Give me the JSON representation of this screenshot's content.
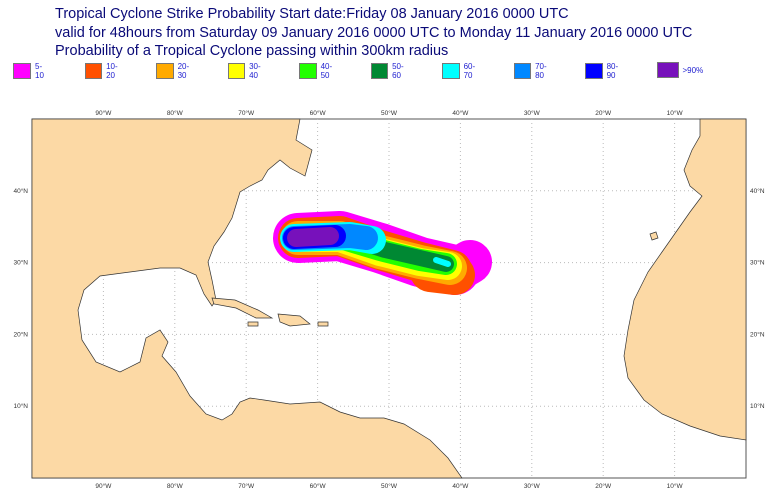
{
  "title": {
    "line1": "Tropical Cyclone Strike Probability Start date:Friday 08 January 2016 0000 UTC",
    "line2": "valid for 48hours from Saturday 09 January 2016 0000 UTC to  Monday 11 January 2016 0000 UTC",
    "line3": "Probability of a Tropical Cyclone passing within 300km radius"
  },
  "legend": [
    {
      "label": "5-10",
      "color": "#ff00ff"
    },
    {
      "label": "10-20",
      "color": "#ff5000"
    },
    {
      "label": "20-30",
      "color": "#ffaa00"
    },
    {
      "label": "30-40",
      "color": "#ffff00"
    },
    {
      "label": "40-50",
      "color": "#22ff00"
    },
    {
      "label": "50-60",
      "color": "#008833"
    },
    {
      "label": "60-70",
      "color": "#00ffff"
    },
    {
      "label": "70-80",
      "color": "#0088ff"
    },
    {
      "label": "80-90",
      "color": "#0000ff"
    },
    {
      "label": ">90%",
      "color": "#7711bb"
    }
  ],
  "map": {
    "lon_labels": [
      "90°W",
      "80°W",
      "70°W",
      "60°W",
      "50°W",
      "40°W",
      "30°W",
      "20°W",
      "10°W"
    ],
    "lat_labels": [
      "40°N",
      "30°N",
      "20°N",
      "10°N"
    ],
    "land_color": "#fcd9a5",
    "sea_color": "#ffffff"
  }
}
